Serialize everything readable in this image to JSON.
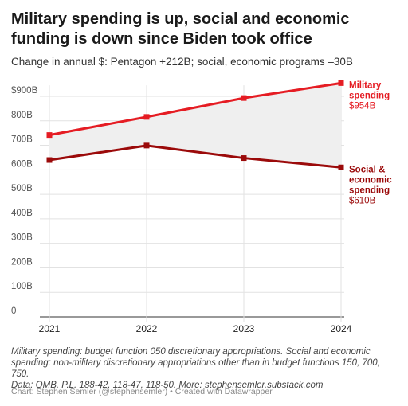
{
  "header": {
    "title": "Military spending is up, social and economic funding is down since Biden took office",
    "subtitle": "Change in annual $: Pentagon +212B; social, economic programs –30B"
  },
  "notes": {
    "line1": "Military spending: budget function 050 discretionary appropriations. Social and economic",
    "line2": "spending: non-military discretionary appropriations other than in budget functions 150, 700, 750.",
    "line3": "Data: OMB, P.L. 188-42, 118-47, 118-50. More: stephensemler.substack.com"
  },
  "credit": "Chart: Stephen Semler (@stephensemler) • Created with Datawrapper",
  "colors": {
    "military": "#e51c23",
    "social": "#9b0a0a",
    "fill": "#efefef",
    "grid": "#e2e2e2"
  },
  "chart_data": {
    "type": "line",
    "x": [
      "2021",
      "2022",
      "2023",
      "2024"
    ],
    "ylim": [
      0,
      950
    ],
    "yticks": [
      0,
      100,
      200,
      300,
      400,
      500,
      600,
      700,
      800,
      900
    ],
    "ytick_labels": [
      "0",
      "100B",
      "200B",
      "300B",
      "400B",
      "500B",
      "600B",
      "700B",
      "800B",
      "$900B"
    ],
    "grid": true,
    "area_between_series": true,
    "series": [
      {
        "name_lines": [
          "Military",
          "spending"
        ],
        "end_label": "$954B",
        "values": [
          742,
          816,
          893,
          954
        ],
        "color": "#e51c23"
      },
      {
        "name_lines": [
          "Social &",
          "economic",
          "spending"
        ],
        "end_label": "$610B",
        "values": [
          640,
          699,
          648,
          610
        ],
        "color": "#9b0a0a"
      }
    ]
  }
}
